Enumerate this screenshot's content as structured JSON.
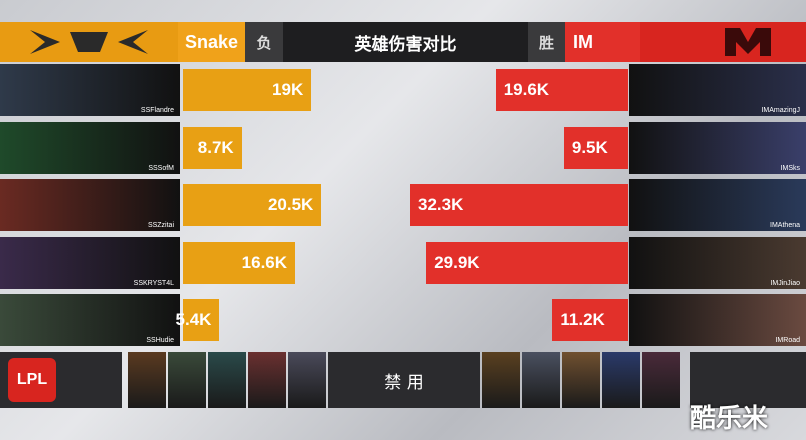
{
  "chart_data": {
    "type": "bar",
    "title": "英雄伤害对比",
    "results": [
      "负",
      "胜"
    ],
    "series": [
      {
        "name": "Snake",
        "color": "#e8a014",
        "values": [
          19,
          8.7,
          20.5,
          16.6,
          5.4
        ],
        "value_labels": [
          "19K",
          "8.7K",
          "20.5K",
          "16.6K",
          "5.4K"
        ],
        "players": [
          "SSFlandre",
          "SSSofM",
          "SSZzitai",
          "SSKRYST4L",
          "SSHudie"
        ]
      },
      {
        "name": "IM",
        "color": "#e2302a",
        "values": [
          19.6,
          9.5,
          32.3,
          29.9,
          11.2
        ],
        "value_labels": [
          "19.6K",
          "9.5K",
          "32.3K",
          "29.9K",
          "11.2K"
        ],
        "players": [
          "IMAmazingJ",
          "IMSks",
          "IMAthena",
          "IMJinJiao",
          "IMRoad"
        ]
      }
    ],
    "ban_label": "禁 用",
    "league": "LPL",
    "watermark": "酷乐米"
  }
}
